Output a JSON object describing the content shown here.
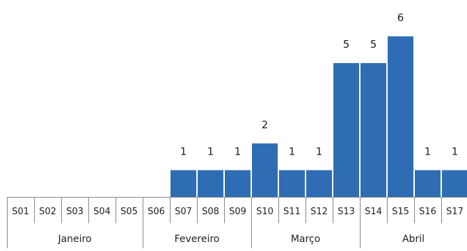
{
  "chart_data": {
    "type": "bar",
    "categories": [
      "S01",
      "S02",
      "S03",
      "S04",
      "S05",
      "S06",
      "S07",
      "S08",
      "S09",
      "S10",
      "S11",
      "S12",
      "S13",
      "S14",
      "S15",
      "S16",
      "S17"
    ],
    "values": [
      0,
      0,
      0,
      0,
      0,
      0,
      1,
      1,
      1,
      2,
      1,
      1,
      5,
      5,
      6,
      1,
      1
    ],
    "month_groups": [
      {
        "label": "Janeiro",
        "start": 0,
        "end": 4
      },
      {
        "label": "Fevereiro",
        "start": 5,
        "end": 8
      },
      {
        "label": "Março",
        "start": 9,
        "end": 12
      },
      {
        "label": "Abril",
        "start": 13,
        "end": 16
      }
    ],
    "ylim": [
      0,
      6
    ],
    "bar_color": "#2e6db4",
    "label_color": "#222222",
    "axis_color": "#888888",
    "grid": false
  }
}
